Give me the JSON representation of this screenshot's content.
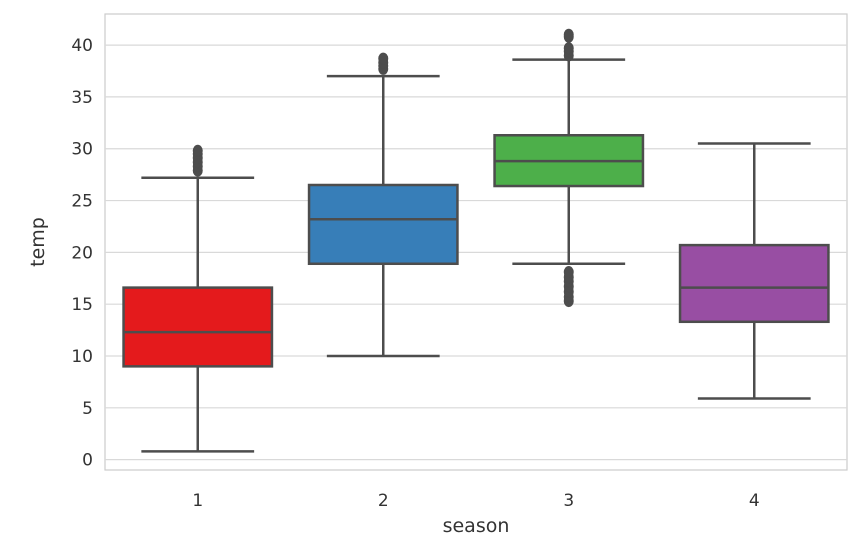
{
  "chart_data": {
    "type": "box",
    "xlabel": "season",
    "ylabel": "temp",
    "categories": [
      "1",
      "2",
      "3",
      "4"
    ],
    "ylim": [
      -1.0,
      43.0
    ],
    "yticks": [
      0,
      5,
      10,
      15,
      20,
      25,
      30,
      35,
      40
    ],
    "grid": true,
    "boxes": [
      {
        "category": "1",
        "whisker_low": 0.8,
        "q1": 9.0,
        "median": 12.3,
        "q3": 16.6,
        "whisker_high": 27.2,
        "outliers": [
          27.9,
          28.3,
          28.7,
          29.1,
          29.5,
          29.8
        ],
        "color": "#e41a1c"
      },
      {
        "category": "2",
        "whisker_low": 10.0,
        "q1": 18.9,
        "median": 23.2,
        "q3": 26.5,
        "whisker_high": 37.0,
        "outliers": [
          37.7,
          38.0,
          38.3,
          38.7
        ],
        "color": "#377eb8"
      },
      {
        "category": "3",
        "whisker_low": 18.9,
        "q1": 26.4,
        "median": 28.8,
        "q3": 31.3,
        "whisker_high": 38.6,
        "outliers": [
          39.0,
          39.4,
          39.7,
          40.8,
          41.0,
          15.3,
          15.7,
          16.2,
          16.7,
          17.2,
          17.6,
          18.1
        ],
        "color": "#4daf4a"
      },
      {
        "category": "4",
        "whisker_low": 5.9,
        "q1": 13.3,
        "median": 16.6,
        "q3": 20.7,
        "whisker_high": 30.5,
        "outliers": [],
        "color": "#984ea3"
      }
    ]
  }
}
